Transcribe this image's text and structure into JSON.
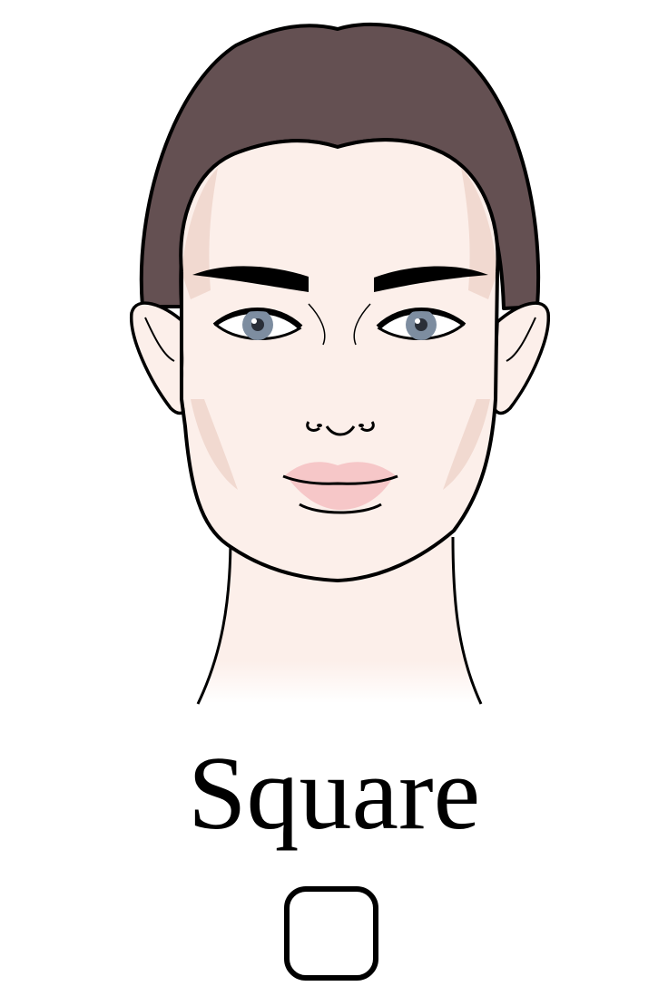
{
  "caption": "Square",
  "shape_icon": "rounded-square-outline-icon",
  "colors": {
    "hair": "#645052",
    "skin": "#fcefea",
    "contour": "#f1d9d0",
    "iris": "#7d8da0",
    "lips": "#f6c7c8",
    "outline": "#000000",
    "background": "#ffffff"
  }
}
